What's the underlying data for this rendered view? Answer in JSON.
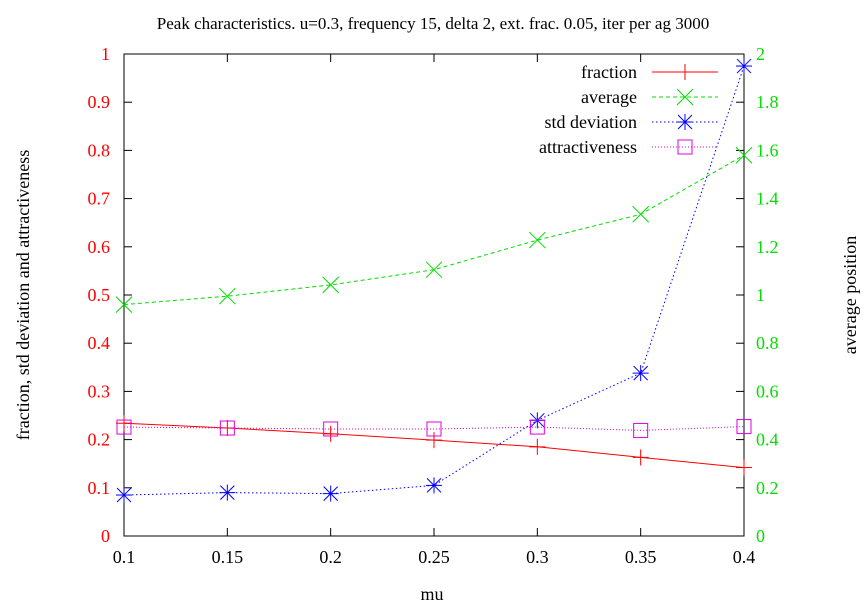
{
  "chart_data": {
    "type": "line",
    "title": "Peak characteristics. u=0.3, frequency 15, delta 2, ext. frac. 0.05, iter per ag 3000",
    "xlabel": "mu",
    "ylabel_left": "fraction, std deviation and attractiveness",
    "ylabel_right": "average position",
    "x": [
      0.1,
      0.15,
      0.2,
      0.25,
      0.3,
      0.35,
      0.4
    ],
    "x_ticks": [
      "0.1",
      "0.15",
      "0.2",
      "0.25",
      "0.3",
      "0.35",
      "0.4"
    ],
    "xlim": [
      0.1,
      0.4
    ],
    "ylim_left": [
      0,
      1
    ],
    "ylim_right": [
      0,
      2
    ],
    "y_ticks_left": [
      "0",
      "0.1",
      "0.2",
      "0.3",
      "0.4",
      "0.5",
      "0.6",
      "0.7",
      "0.8",
      "0.9",
      "1"
    ],
    "y_ticks_right": [
      "0",
      "0.2",
      "0.4",
      "0.6",
      "0.8",
      "1",
      "1.2",
      "1.4",
      "1.6",
      "1.8",
      "2"
    ],
    "legend_position": "top-right",
    "grid": false,
    "series": [
      {
        "name": "fraction",
        "axis": "left",
        "color": "#ff0000",
        "marker": "plus",
        "dash": "",
        "values": [
          0.234,
          0.224,
          0.212,
          0.199,
          0.185,
          0.163,
          0.142
        ]
      },
      {
        "name": "average",
        "axis": "right",
        "color": "#00dd00",
        "marker": "x",
        "dash": "4,3",
        "values": [
          0.96,
          0.995,
          1.042,
          1.105,
          1.228,
          1.335,
          1.58
        ]
      },
      {
        "name": "std deviation",
        "axis": "left",
        "color": "#0000ff",
        "marker": "star",
        "dash": "1.5,2.5",
        "values": [
          0.085,
          0.09,
          0.088,
          0.105,
          0.24,
          0.338,
          0.975
        ]
      },
      {
        "name": "attractiveness",
        "axis": "left",
        "color": "#e000e0",
        "marker": "square",
        "dash": "1,2",
        "values": [
          0.226,
          0.224,
          0.222,
          0.222,
          0.226,
          0.219,
          0.227
        ]
      }
    ]
  }
}
